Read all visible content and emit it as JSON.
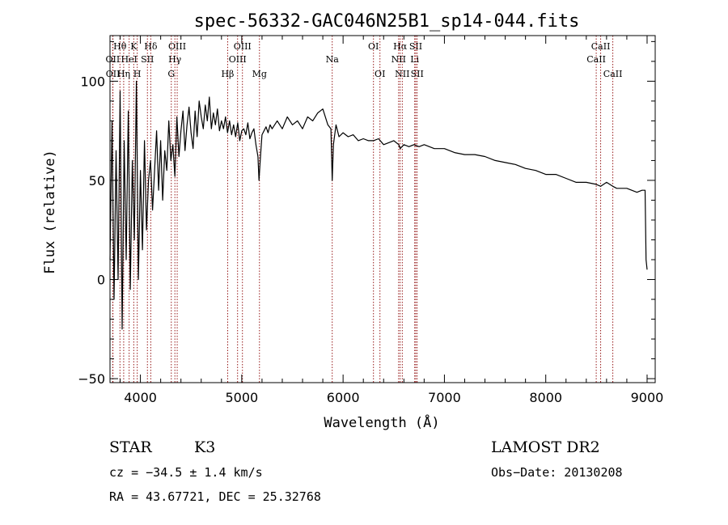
{
  "chart_data": {
    "type": "line",
    "title": "spec-56332-GAC046N25B1_sp14-044.fits",
    "xlabel": "Wavelength (Å)",
    "ylabel": "Flux (relative)",
    "xlim": [
      3700,
      9080
    ],
    "ylim": [
      -52,
      123
    ],
    "x_ticks": [
      4000,
      5000,
      6000,
      7000,
      8000,
      9000
    ],
    "y_ticks": [
      -50,
      0,
      50,
      100
    ],
    "grid": false,
    "series": [
      {
        "x": [
          3700,
          3720,
          3740,
          3760,
          3780,
          3800,
          3820,
          3840,
          3860,
          3880,
          3900,
          3920,
          3940,
          3960,
          3980,
          4000,
          4020,
          4040,
          4060,
          4080,
          4100,
          4120,
          4140,
          4160,
          4180,
          4200,
          4220,
          4240,
          4260,
          4280,
          4300,
          4320,
          4340,
          4360,
          4380,
          4400,
          4420,
          4440,
          4460,
          4480,
          4500,
          4520,
          4540,
          4560,
          4580,
          4600,
          4620,
          4640,
          4660,
          4680,
          4700,
          4720,
          4740,
          4760,
          4780,
          4800,
          4820,
          4840,
          4860,
          4880,
          4900,
          4920,
          4940,
          4960,
          4980,
          5000,
          5020,
          5040,
          5060,
          5080,
          5100,
          5120,
          5140,
          5160,
          5170,
          5180,
          5190,
          5200,
          5220,
          5240,
          5260,
          5280,
          5300,
          5350,
          5400,
          5450,
          5500,
          5550,
          5600,
          5650,
          5700,
          5750,
          5800,
          5850,
          5880,
          5893,
          5905,
          5930,
          5960,
          6000,
          6050,
          6100,
          6150,
          6200,
          6250,
          6300,
          6350,
          6400,
          6450,
          6500,
          6550,
          6563,
          6600,
          6650,
          6700,
          6750,
          6800,
          6900,
          7000,
          7100,
          7200,
          7300,
          7400,
          7500,
          7600,
          7700,
          7800,
          7900,
          8000,
          8100,
          8200,
          8300,
          8400,
          8498,
          8542,
          8600,
          8662,
          8700,
          8800,
          8900,
          8950,
          8980,
          8990,
          9000
        ],
        "y": [
          10,
          80,
          -10,
          65,
          0,
          95,
          -25,
          70,
          10,
          85,
          -5,
          60,
          20,
          100,
          0,
          55,
          15,
          70,
          25,
          50,
          60,
          35,
          55,
          75,
          45,
          70,
          40,
          65,
          55,
          80,
          60,
          68,
          52,
          82,
          62,
          75,
          85,
          65,
          78,
          87,
          74,
          66,
          85,
          72,
          90,
          82,
          76,
          88,
          80,
          92,
          76,
          84,
          78,
          86,
          75,
          80,
          76,
          82,
          74,
          80,
          73,
          78,
          72,
          79,
          70,
          75,
          76,
          73,
          79,
          71,
          74,
          76,
          68,
          62,
          50,
          58,
          66,
          73,
          75,
          77,
          74,
          78,
          76,
          80,
          76,
          82,
          78,
          80,
          76,
          82,
          80,
          84,
          86,
          78,
          76,
          50,
          68,
          78,
          72,
          74,
          72,
          73,
          70,
          71,
          70,
          70,
          71,
          68,
          69,
          70,
          68,
          66,
          68,
          67,
          68,
          67,
          68,
          66,
          66,
          64,
          63,
          63,
          62,
          60,
          59,
          58,
          56,
          55,
          53,
          53,
          51,
          49,
          49,
          48,
          47,
          49,
          47,
          46,
          46,
          44,
          45,
          45,
          10,
          5
        ]
      }
    ],
    "emission_lines": [
      {
        "label": "Hθ",
        "x": 3798,
        "row": 1
      },
      {
        "label": "OII",
        "x": 3727,
        "row": 2
      },
      {
        "label": "OII",
        "x": 3729,
        "row": 3
      },
      {
        "label": "HeI",
        "x": 3889,
        "row": 2
      },
      {
        "label": "Hη",
        "x": 3835,
        "row": 3
      },
      {
        "label": "K",
        "x": 3934,
        "row": 1
      },
      {
        "label": "H",
        "x": 3969,
        "row": 3
      },
      {
        "label": "SII",
        "x": 4069,
        "row": 2
      },
      {
        "label": "Hδ",
        "x": 4102,
        "row": 1
      },
      {
        "label": "OIII",
        "x": 4363,
        "row": 1
      },
      {
        "label": "Hγ",
        "x": 4340,
        "row": 2
      },
      {
        "label": "G",
        "x": 4305,
        "row": 3
      },
      {
        "label": "Hβ",
        "x": 4861,
        "row": 3
      },
      {
        "label": "OIII",
        "x": 5007,
        "row": 1
      },
      {
        "label": "OIII",
        "x": 4959,
        "row": 2
      },
      {
        "label": "Mg",
        "x": 5175,
        "row": 3
      },
      {
        "label": "Na",
        "x": 5893,
        "row": 2
      },
      {
        "label": "OI",
        "x": 6300,
        "row": 1
      },
      {
        "label": "OI",
        "x": 6364,
        "row": 3
      },
      {
        "label": "Hα",
        "x": 6563,
        "row": 1
      },
      {
        "label": "NII",
        "x": 6548,
        "row": 2
      },
      {
        "label": "NII",
        "x": 6584,
        "row": 3
      },
      {
        "label": "SII",
        "x": 6717,
        "row": 1
      },
      {
        "label": "Li",
        "x": 6707,
        "row": 2
      },
      {
        "label": "SII",
        "x": 6731,
        "row": 3
      },
      {
        "label": "CaII",
        "x": 8542,
        "row": 1
      },
      {
        "label": "CaII",
        "x": 8498,
        "row": 2
      },
      {
        "label": "CaII",
        "x": 8662,
        "row": 3
      }
    ]
  },
  "info": {
    "class_label": "STAR",
    "subclass": "K3",
    "survey": "LAMOST DR2",
    "cz": "cz = −34.5 ± 1.4 km/s",
    "obs_date": "Obs−Date: 20130208",
    "coords": "RA =  43.67721, DEC =  25.32768"
  },
  "colors": {
    "spectrum": "#000000",
    "line_markers": "#8b0000",
    "axes": "#000000",
    "background": "#ffffff"
  }
}
